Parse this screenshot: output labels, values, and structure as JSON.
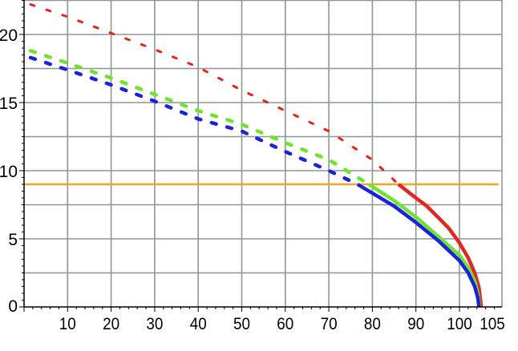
{
  "chart_data": {
    "type": "line",
    "title": "",
    "xlabel": "",
    "ylabel": "",
    "xlim": [
      0,
      110
    ],
    "ylim": [
      0,
      22.5
    ],
    "grid": true,
    "x_ticks": [
      "10",
      "20",
      "30",
      "40",
      "50",
      "60",
      "70",
      "80",
      "90",
      "100",
      "105"
    ],
    "x_tick_values": [
      10,
      20,
      30,
      40,
      50,
      60,
      70,
      80,
      90,
      100,
      105
    ],
    "y_ticks": [
      "0",
      "5",
      "10",
      "15",
      "20"
    ],
    "y_tick_values": [
      0,
      5,
      10,
      15,
      20
    ],
    "threshold": {
      "y": 9,
      "x_range": [
        0,
        109
      ],
      "color": "#f5a623"
    },
    "series": [
      {
        "color": "#e8231b",
        "dotted": [
          [
            1.5,
            22.2
          ],
          [
            10,
            21.3
          ],
          [
            20,
            20.1
          ],
          [
            30,
            18.9
          ],
          [
            40,
            17.6
          ],
          [
            50,
            15.9
          ],
          [
            60,
            14.4
          ],
          [
            70,
            12.9
          ],
          [
            80,
            10.8
          ],
          [
            86,
            9
          ]
        ],
        "solid": [
          [
            86,
            9
          ],
          [
            88,
            8.5
          ],
          [
            90,
            8.0
          ],
          [
            92.5,
            7.4
          ],
          [
            95,
            6.6
          ],
          [
            97.5,
            5.8
          ],
          [
            100,
            4.7
          ],
          [
            102,
            3.6
          ],
          [
            103.5,
            2.5
          ],
          [
            104.5,
            1.4
          ],
          [
            105,
            0
          ]
        ]
      },
      {
        "color": "#6ee52a",
        "dotted": [
          [
            1.5,
            18.8
          ],
          [
            10,
            17.9
          ],
          [
            20,
            16.8
          ],
          [
            30,
            15.6
          ],
          [
            40,
            14.4
          ],
          [
            50,
            13.4
          ],
          [
            60,
            12.05
          ],
          [
            70,
            10.8
          ],
          [
            79.2,
            9
          ]
        ],
        "solid": [
          [
            79.2,
            9
          ],
          [
            85,
            7.8
          ],
          [
            90,
            6.6
          ],
          [
            95,
            5.2
          ],
          [
            100,
            3.8
          ],
          [
            102,
            2.9
          ],
          [
            103.5,
            1.9
          ],
          [
            104.3,
            0.9
          ],
          [
            104.6,
            0
          ]
        ]
      },
      {
        "color": "#1a22e0",
        "dotted": [
          [
            1.5,
            18.3
          ],
          [
            10,
            17.4
          ],
          [
            20,
            16.3
          ],
          [
            30,
            15.1
          ],
          [
            40,
            13.8
          ],
          [
            50,
            12.9
          ],
          [
            60,
            11.4
          ],
          [
            70,
            10.0
          ],
          [
            76.6,
            9
          ]
        ],
        "solid": [
          [
            76.6,
            9
          ],
          [
            85,
            7.4
          ],
          [
            90,
            6.2
          ],
          [
            95,
            4.9
          ],
          [
            100,
            3.4
          ],
          [
            102,
            2.5
          ],
          [
            103.5,
            1.5
          ],
          [
            104.2,
            0.7
          ],
          [
            104.5,
            0
          ]
        ]
      }
    ]
  }
}
